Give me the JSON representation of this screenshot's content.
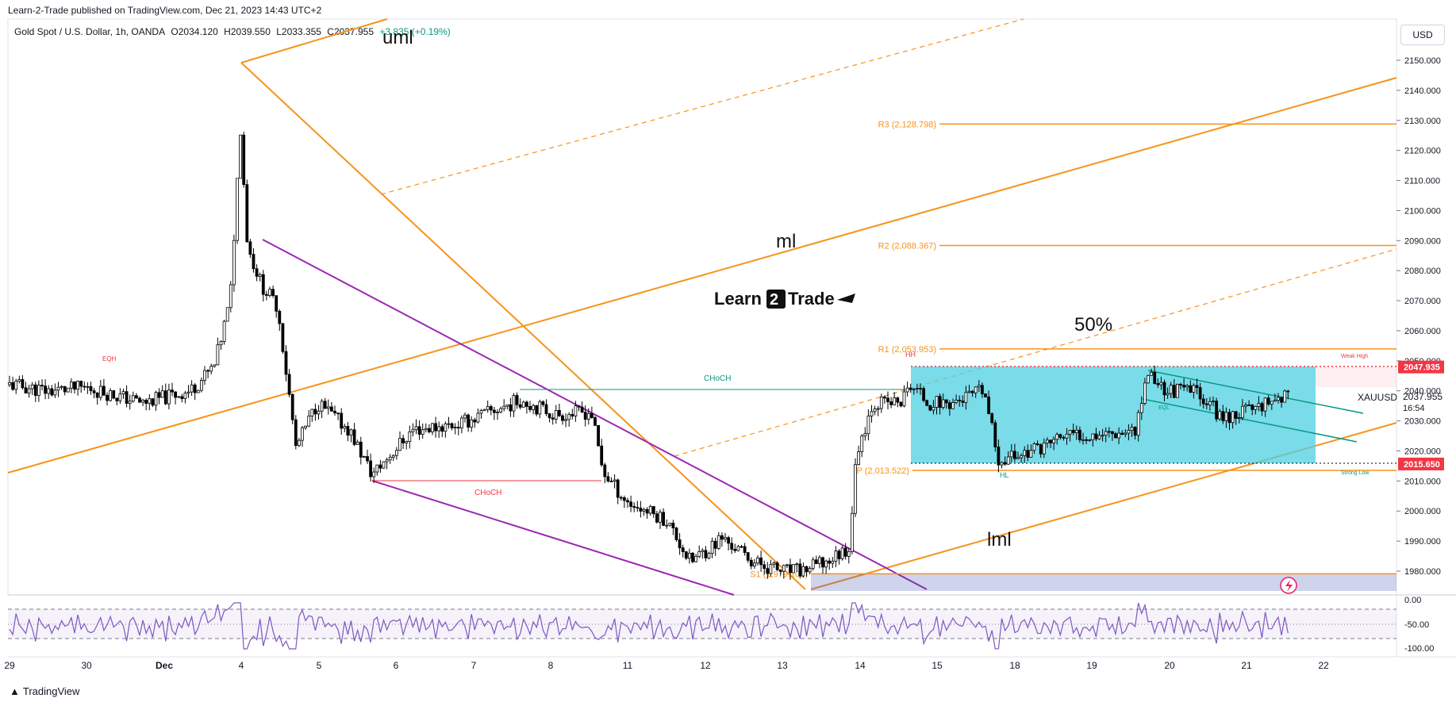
{
  "header": {
    "published": "Learn-2-Trade published on TradingView.com, Dec 21, 2023 14:43 UTC+2",
    "symbol": "Gold Spot / U.S. Dollar, 1h, OANDA",
    "open": "O2034.120",
    "high": "H2039.550",
    "low": "L2033.355",
    "close": "C2037.955",
    "change": "+3.835 (+0.19%)",
    "currency_button": "USD"
  },
  "footer": {
    "brand": "TradingView"
  },
  "colors": {
    "up": "#ffffff",
    "down": "#000000",
    "fork": "#f7931a",
    "wedge": "#9c27b0",
    "teal": "#089981",
    "box": "#4dd0e1",
    "red": "#f23645",
    "rsi": "#7e57c2"
  },
  "chart_data": {
    "type": "line",
    "title": "Gold Spot / U.S. Dollar, 1h, OANDA",
    "symbol_label": "XAUUSD",
    "last_price": "2037.955",
    "countdown": "16:54",
    "watermark": "Learn2Trade",
    "y_axis_ticks": [
      "2150.000",
      "2140.000",
      "2130.000",
      "2120.000",
      "2110.000",
      "2100.000",
      "2090.000",
      "2080.000",
      "2070.000",
      "2060.000",
      "2050.000",
      "2040.000",
      "2030.000",
      "2020.000",
      "2010.000",
      "2000.000",
      "1990.000",
      "1980.000"
    ],
    "ylim": [
      1970,
      2160
    ],
    "x_axis_ticks": [
      "29",
      "30",
      "Dec",
      "4",
      "5",
      "6",
      "7",
      "8",
      "11",
      "12",
      "13",
      "14",
      "15",
      "18",
      "19",
      "20",
      "21",
      "22"
    ],
    "price_series_hourly_close": {
      "x": [
        "Nov 29",
        "Nov 30",
        "Dec 1",
        "Dec 4",
        "Dec 5",
        "Dec 6",
        "Dec 7",
        "Dec 8",
        "Dec 11",
        "Dec 12",
        "Dec 13",
        "Dec 14",
        "Dec 15",
        "Dec 18",
        "Dec 19",
        "Dec 20",
        "Dec 21"
      ],
      "values": [
        2044.0,
        2038.0,
        2043.0,
        2070.0,
        2018.0,
        2027.0,
        2030.0,
        2025.0,
        1993.0,
        1980.0,
        1979.0,
        2035.0,
        2041.0,
        2018.0,
        2026.0,
        2036.0,
        2037.955
      ]
    },
    "pivot_levels": [
      {
        "label": "R3 (2,128.798)",
        "value": 2128.798
      },
      {
        "label": "R2 (2,088.367)",
        "value": 2088.367
      },
      {
        "label": "R1 (2,053.953)",
        "value": 2053.953
      },
      {
        "label": "P (2,013.522)",
        "value": 2013.522
      },
      {
        "label": "S1 (1,979.108)",
        "value": 1979.108
      }
    ],
    "price_tags": [
      {
        "text": "2047.935",
        "value": 2047.935
      },
      {
        "text": "2015.650",
        "value": 2015.65
      }
    ],
    "annotations": {
      "uml": "uml",
      "ml": "ml",
      "lml": "lml",
      "fifty": "50%",
      "choch": "CHoCH",
      "choch_teal": "CHoCH",
      "eqh": "EQH",
      "hh": "HH",
      "hl": "HL",
      "eql": "EQL",
      "weak_high": "Weak High",
      "strong_low": "Strong Low"
    },
    "rsi": {
      "ticks": [
        "0.00",
        "-50.00",
        "-100.00"
      ],
      "ylim": [
        -100,
        0
      ]
    }
  }
}
